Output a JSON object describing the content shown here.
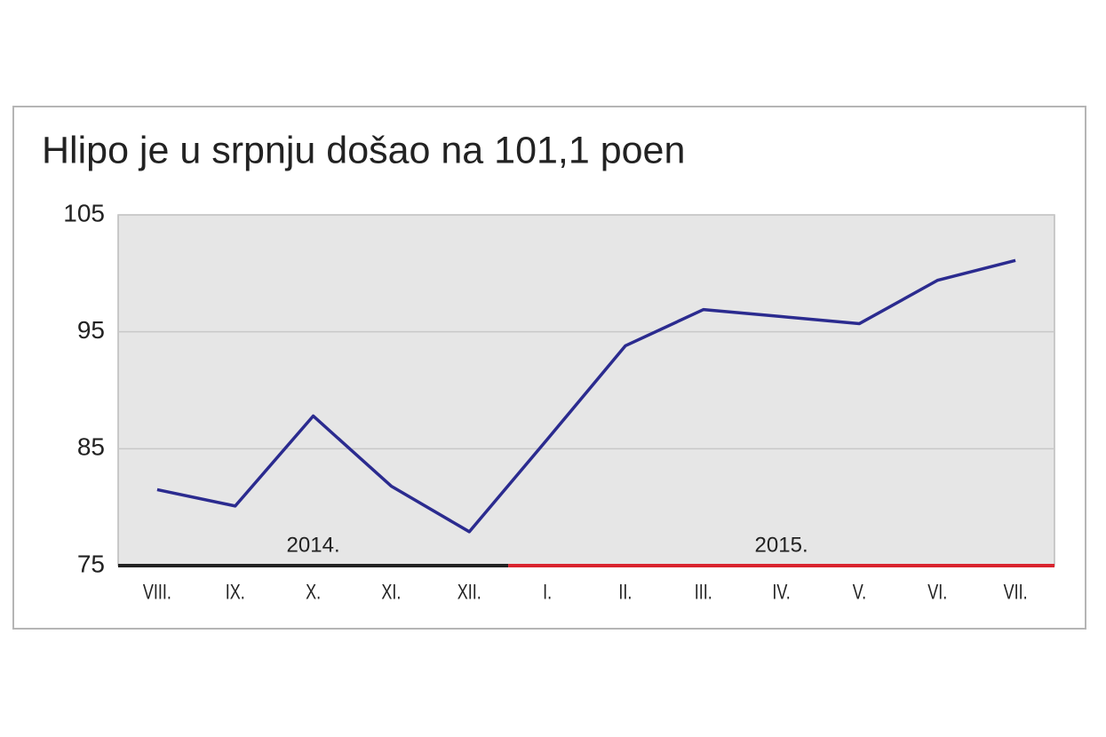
{
  "chart_data": {
    "type": "line",
    "title": "Hlipo je u srpnju došao na 101,1 poen",
    "categories": [
      "VIII.",
      "IX.",
      "X.",
      "XI.",
      "XII.",
      "I.",
      "II.",
      "III.",
      "IV.",
      "V.",
      "VI.",
      "VII."
    ],
    "series": [
      {
        "color": "#2b2b8f",
        "values": [
          81.5,
          80.1,
          87.8,
          81.8,
          77.9,
          85.8,
          93.8,
          96.9,
          96.3,
          95.7,
          99.4,
          101.1
        ]
      }
    ],
    "ylim": [
      75,
      105
    ],
    "yticks": [
      75,
      85,
      95,
      105
    ],
    "grid": true,
    "periods": [
      {
        "label": "2014.",
        "color": "#222222",
        "from": "VIII.",
        "to": "XII."
      },
      {
        "label": "2015.",
        "color": "#d9232e",
        "from": "I.",
        "to": "VII."
      }
    ]
  }
}
